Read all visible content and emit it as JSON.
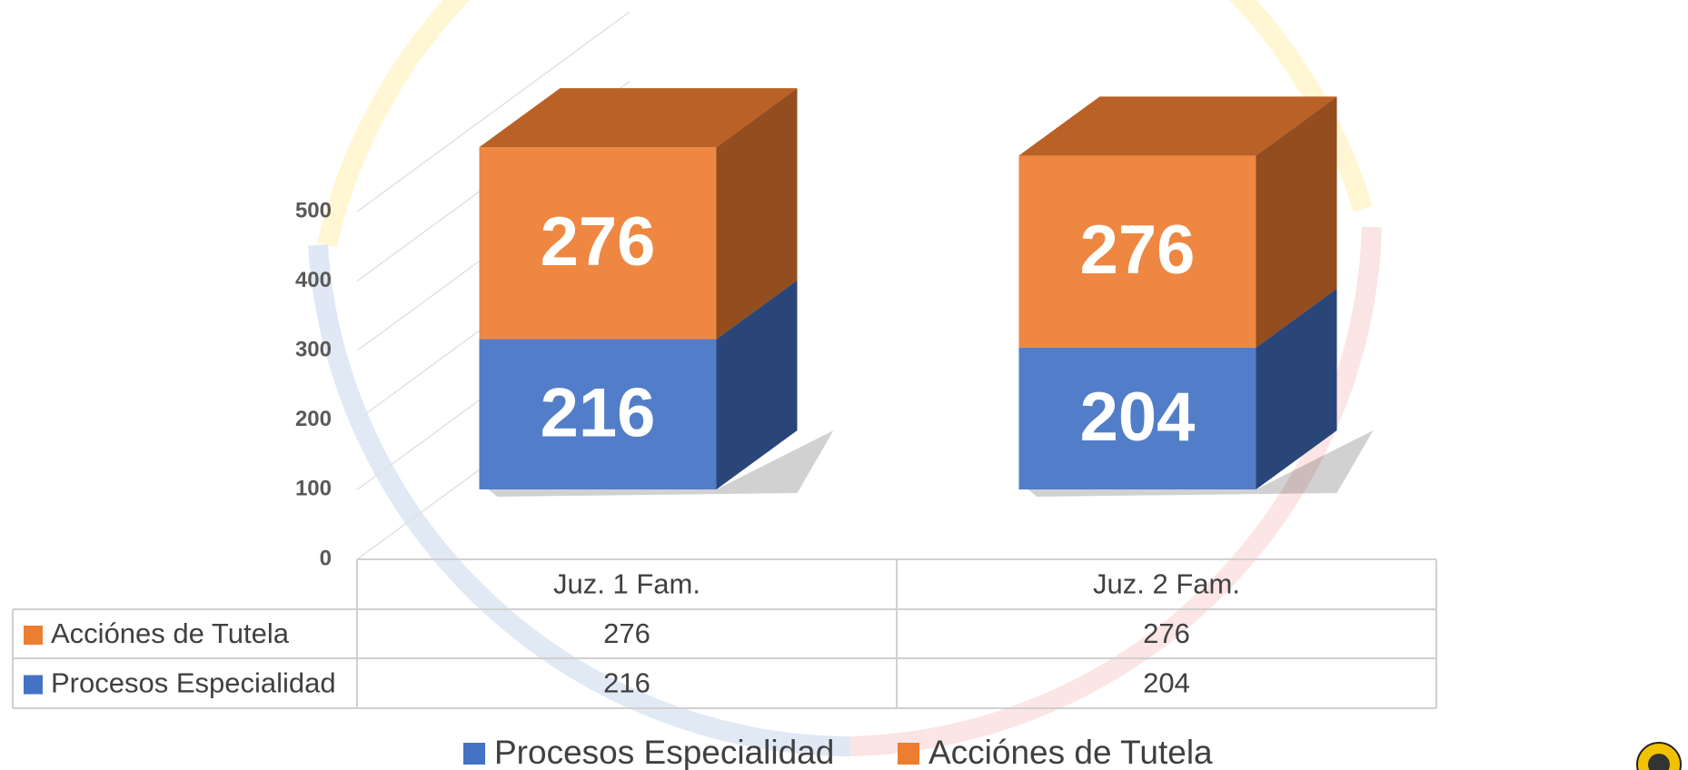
{
  "chart_data": {
    "type": "bar3d_stacked",
    "categories": [
      "Juz. 1 Fam.",
      "Juz. 2 Fam."
    ],
    "series": [
      {
        "name": "Procesos Especialidad",
        "color": "#4472c4",
        "values": [
          216,
          204
        ]
      },
      {
        "name": "Acciónes de Tutela",
        "color": "#ed7d31",
        "values": [
          276,
          276
        ]
      }
    ],
    "ylim": [
      0,
      500
    ],
    "yticks": [
      0,
      100,
      200,
      300,
      400,
      500
    ],
    "grid": true
  }
}
